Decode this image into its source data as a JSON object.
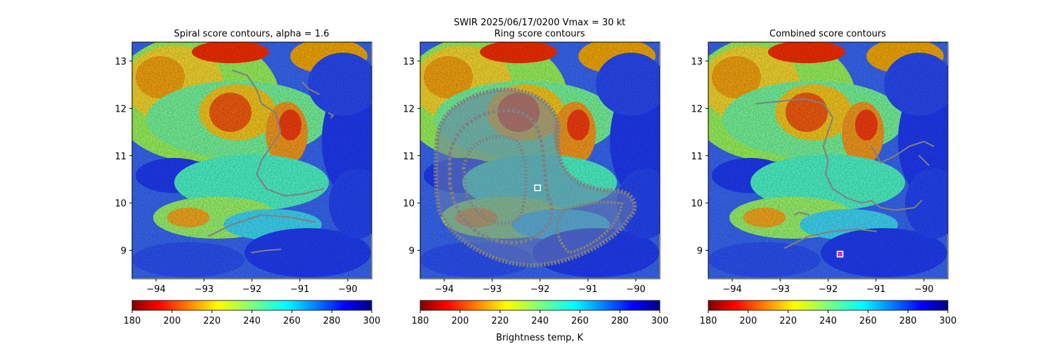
{
  "suptitle": {
    "line1": "SWIR  2025/06/17/0200    Vmax = 30 kt"
  },
  "colorbar_label": "Brightness temp, K",
  "colors": {
    "contour": "#808080",
    "marker_edge": "#ffffff",
    "marker_fill_combined": "#cc33cc"
  },
  "chart_data": [
    {
      "type": "heatmap",
      "title": "Spiral score contours, alpha =  1.6",
      "xlabel": "",
      "ylabel": "",
      "xlim": [
        -94.5,
        -89.5
      ],
      "ylim": [
        8.4,
        13.4
      ],
      "xticks": [
        -94,
        -93,
        -92,
        -91,
        -90
      ],
      "yticks": [
        9,
        10,
        11,
        12,
        13
      ],
      "colormap": "jet_r",
      "clim": [
        180,
        300
      ],
      "colorbar_ticks": [
        180,
        200,
        220,
        240,
        260,
        280,
        300
      ],
      "contours": [
        [
          [
            -92.4,
            12.8
          ],
          [
            -92.1,
            12.7
          ],
          [
            -91.9,
            12.4
          ],
          [
            -91.8,
            12.1
          ],
          [
            -91.5,
            11.9
          ],
          [
            -91.4,
            11.5
          ],
          [
            -91.6,
            11.2
          ],
          [
            -91.8,
            10.9
          ],
          [
            -91.9,
            10.6
          ],
          [
            -91.7,
            10.3
          ],
          [
            -91.3,
            10.15
          ],
          [
            -90.9,
            10.2
          ],
          [
            -90.5,
            10.3
          ]
        ],
        [
          [
            -92.9,
            9.3
          ],
          [
            -92.4,
            9.55
          ],
          [
            -91.8,
            9.75
          ],
          [
            -91.2,
            9.7
          ],
          [
            -90.7,
            9.6
          ]
        ],
        [
          [
            -92.0,
            8.95
          ],
          [
            -91.7,
            9.0
          ],
          [
            -91.4,
            9.02
          ]
        ],
        [
          [
            -90.95,
            12.55
          ],
          [
            -90.8,
            12.4
          ],
          [
            -90.6,
            12.3
          ]
        ],
        [
          [
            -90.4,
            11.9
          ],
          [
            -90.3,
            11.85
          ],
          [
            -90.35,
            11.8
          ]
        ]
      ],
      "marker": null
    },
    {
      "type": "heatmap",
      "title": "Ring score contours",
      "xlabel": "",
      "ylabel": "",
      "xlim": [
        -94.5,
        -89.5
      ],
      "ylim": [
        8.4,
        13.4
      ],
      "xticks": [
        -94,
        -93,
        -92,
        -91,
        -90
      ],
      "yticks": [
        9,
        10,
        11,
        12,
        13
      ],
      "colormap": "jet_r",
      "clim": [
        180,
        300
      ],
      "colorbar_ticks": [
        180,
        200,
        220,
        240,
        260,
        280,
        300
      ],
      "contour_region": "ring of dense contours centered near (-92.05, 10.3), radius about 1.6 deg, open to the east",
      "marker": {
        "x": -92.05,
        "y": 10.32
      }
    },
    {
      "type": "heatmap",
      "title": "Combined score contours",
      "xlabel": "",
      "ylabel": "",
      "xlim": [
        -94.5,
        -89.5
      ],
      "ylim": [
        8.4,
        13.4
      ],
      "xticks": [
        -94,
        -93,
        -92,
        -91,
        -90
      ],
      "yticks": [
        9,
        10,
        11,
        12,
        13
      ],
      "colormap": "jet_r",
      "clim": [
        180,
        300
      ],
      "colorbar_ticks": [
        180,
        200,
        220,
        240,
        260,
        280,
        300
      ],
      "contours": [
        [
          [
            -93.5,
            12.1
          ],
          [
            -93.0,
            12.15
          ],
          [
            -92.5,
            12.2
          ],
          [
            -92.1,
            12.1
          ],
          [
            -91.9,
            11.8
          ],
          [
            -92.0,
            11.5
          ],
          [
            -92.1,
            11.2
          ],
          [
            -92.0,
            10.9
          ],
          [
            -92.05,
            10.6
          ],
          [
            -91.9,
            10.3
          ],
          [
            -91.6,
            10.1
          ],
          [
            -91.3,
            10.0
          ],
          [
            -91.1,
            10.05
          ],
          [
            -90.9,
            9.9
          ],
          [
            -90.6,
            9.85
          ],
          [
            -90.2,
            9.9
          ],
          [
            -90.05,
            10.05
          ]
        ],
        [
          [
            -92.4,
            9.75
          ],
          [
            -92.6,
            9.8
          ],
          [
            -92.7,
            9.75
          ]
        ],
        [
          [
            -92.9,
            9.05
          ],
          [
            -92.4,
            9.3
          ],
          [
            -91.9,
            9.4
          ],
          [
            -91.4,
            9.45
          ],
          [
            -91.0,
            9.4
          ]
        ],
        [
          [
            -91.1,
            11.2
          ],
          [
            -90.9,
            10.85
          ],
          [
            -90.6,
            11.0
          ],
          [
            -90.3,
            11.2
          ],
          [
            -90.0,
            11.3
          ],
          [
            -89.8,
            11.2
          ]
        ],
        [
          [
            -90.1,
            11.0
          ],
          [
            -89.9,
            10.8
          ]
        ]
      ],
      "marker": {
        "x": -91.75,
        "y": 8.92
      }
    }
  ]
}
